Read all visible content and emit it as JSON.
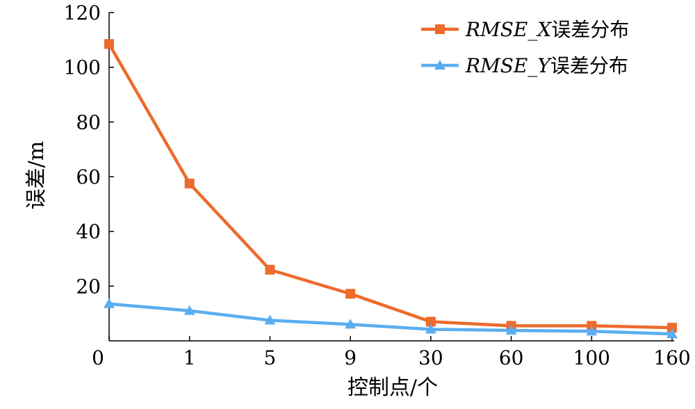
{
  "chart_data": {
    "type": "line",
    "categories": [
      "0",
      "1",
      "5",
      "9",
      "30",
      "60",
      "100",
      "160"
    ],
    "xlabel": "控制点/个",
    "ylabel": "误差/m",
    "ylim": [
      0,
      120
    ],
    "yticks": [
      20,
      40,
      60,
      80,
      100,
      120
    ],
    "xtick_zero_label": "0",
    "grid": false,
    "legend_position": "top-right",
    "series": [
      {
        "name": "RMSE_X误差分布",
        "name_italic": "RMSE_X",
        "name_suffix": "误差分布",
        "color": "#ec6b2d",
        "marker": "square",
        "values": [
          108.5,
          57.5,
          26.0,
          17.2,
          7.0,
          5.5,
          5.5,
          4.8
        ]
      },
      {
        "name": "RMSE_Y误差分布",
        "name_italic": "RMSE_Y",
        "name_suffix": "误差分布",
        "color": "#5aaef0",
        "marker": "triangle",
        "values": [
          13.5,
          11.0,
          7.5,
          6.0,
          4.2,
          3.8,
          3.5,
          2.5
        ]
      }
    ]
  }
}
